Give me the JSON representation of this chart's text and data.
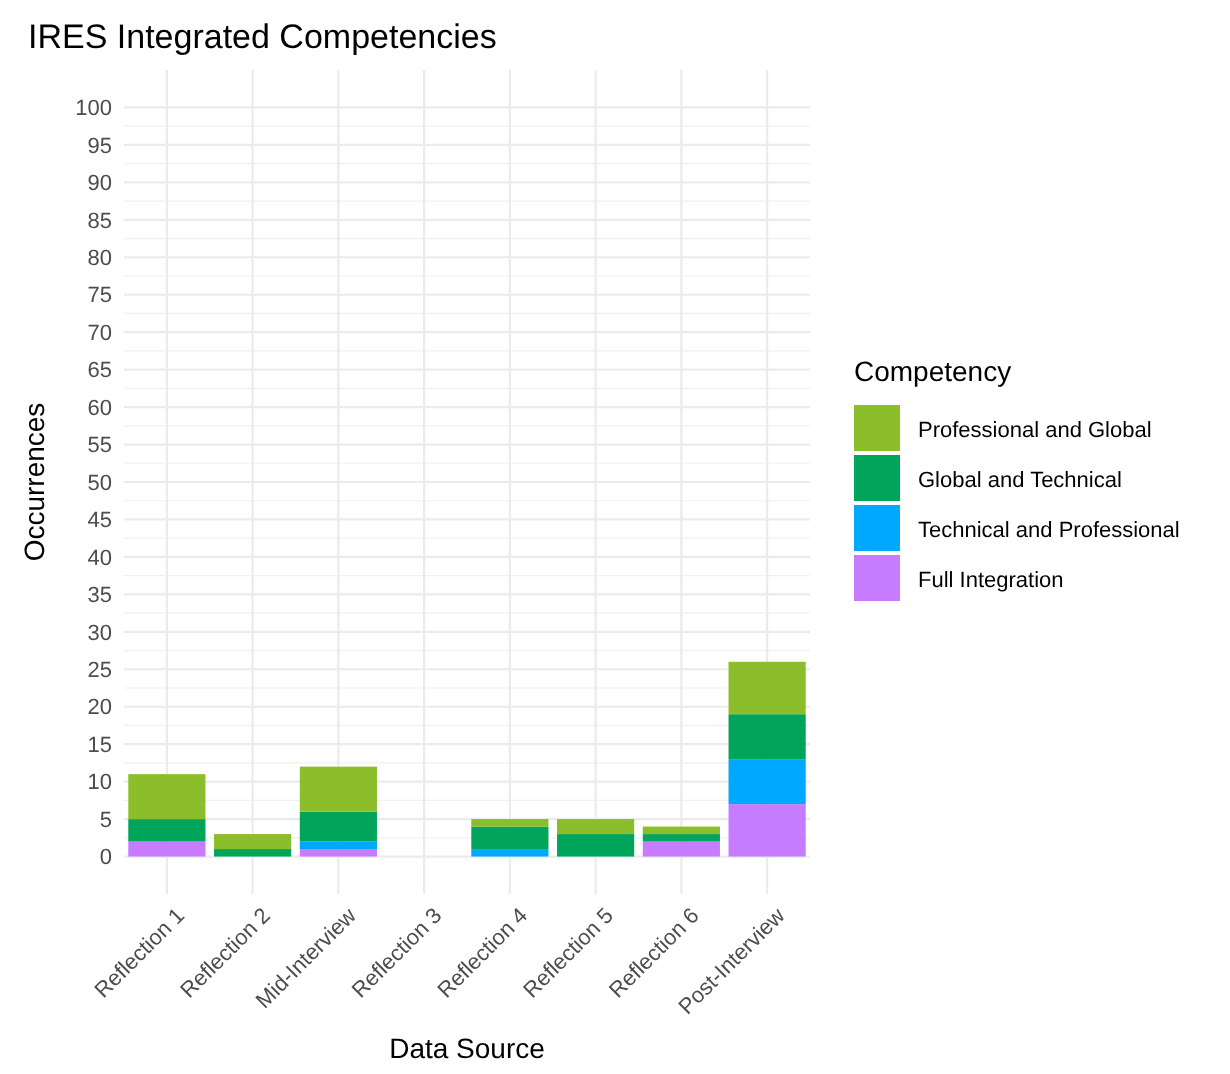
{
  "chart_data": {
    "type": "bar",
    "title": "IRES Integrated Competencies",
    "xlabel": "Data Source",
    "ylabel": "Occurrences",
    "legend_title": "Competency",
    "categories": [
      "Reflection 1",
      "Reflection 2",
      "Mid-Interview",
      "Reflection 3",
      "Reflection 4",
      "Reflection 5",
      "Reflection 6",
      "Post-Interview"
    ],
    "stacked": true,
    "series": [
      {
        "name": "Full Integration",
        "color": "#c77cff",
        "values": [
          2,
          0,
          1,
          0,
          0,
          0,
          2,
          7
        ]
      },
      {
        "name": "Technical and Professional",
        "color": "#00a9ff",
        "values": [
          0,
          0,
          1,
          0,
          1,
          0,
          0,
          6
        ]
      },
      {
        "name": "Global and Technical",
        "color": "#00a45a",
        "values": [
          3,
          1,
          4,
          0,
          3,
          3,
          1,
          6
        ]
      },
      {
        "name": "Professional and Global",
        "color": "#8cbd2a",
        "values": [
          6,
          2,
          6,
          0,
          1,
          2,
          1,
          7
        ]
      }
    ],
    "ylim": [
      -5,
      105
    ],
    "yticks": [
      0,
      5,
      10,
      15,
      20,
      25,
      30,
      35,
      40,
      45,
      50,
      55,
      60,
      65,
      70,
      75,
      80,
      85,
      90,
      95,
      100
    ],
    "grid": true,
    "legend": "right"
  }
}
